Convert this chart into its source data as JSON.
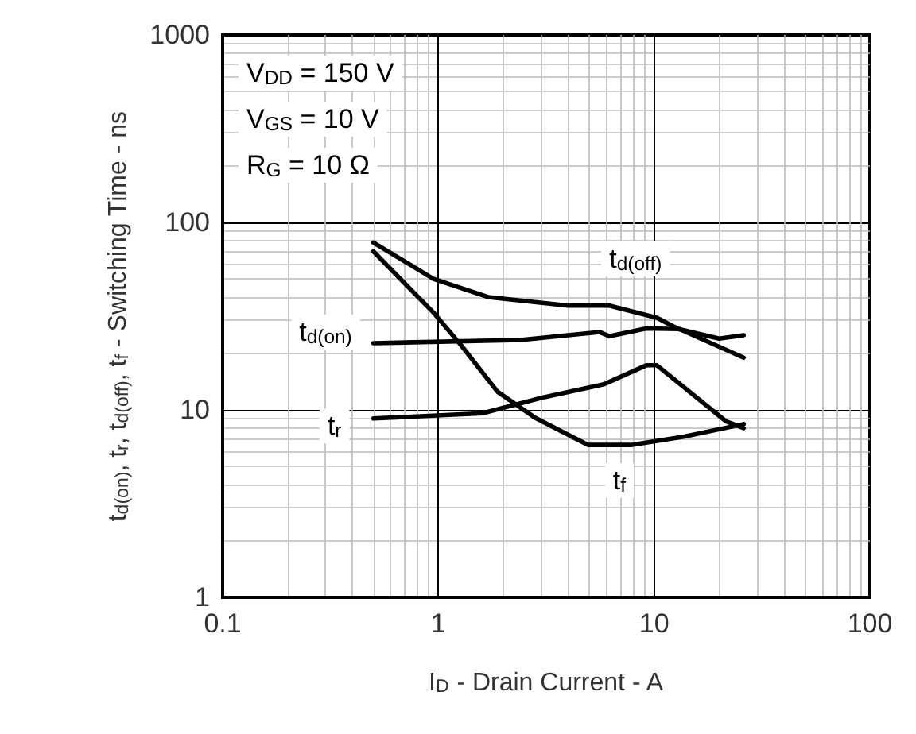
{
  "chart_data": {
    "type": "line",
    "xlabel": "I$_{D}$ - Drain Current - A",
    "ylabel": "t$_{d(on)}$, t$_{r}$, t$_{d(off)}$, t$_{f}$ - Switching Time - ns",
    "log": "xy",
    "grid": true,
    "marker": "none",
    "line_style": "solid",
    "xlim": [
      0.1,
      100
    ],
    "xticks": [
      0.1,
      1,
      10,
      100
    ],
    "ylim": [
      1,
      1000
    ],
    "yticks": [
      1,
      10,
      100,
      1000
    ],
    "series": [
      {
        "color": "#000000",
        "x": [
          0.5,
          0.95,
          1.7,
          4,
          6.2,
          10.3,
          12.2,
          26
        ],
        "values": [
          78,
          50,
          40,
          36,
          36,
          31,
          28,
          19
        ]
      },
      {
        "color": "#000000",
        "x": [
          0.5,
          0.95,
          1.28,
          1.88,
          2.8,
          4.95,
          7.8,
          13.7,
          26
        ],
        "values": [
          70,
          33,
          22,
          12.5,
          9.1,
          6.5,
          6.5,
          7.2,
          8.4
        ]
      },
      {
        "color": "#000000",
        "x": [
          0.5,
          2.4,
          5.6,
          6.2,
          9.2,
          13,
          20,
          26
        ],
        "values": [
          22.7,
          23.6,
          26,
          24.7,
          27.2,
          27,
          24,
          25
        ]
      },
      {
        "color": "#000000",
        "x": [
          0.5,
          1.6,
          3.1,
          5.85,
          9.2,
          10.3,
          21.5,
          26
        ],
        "values": [
          9,
          9.6,
          11.7,
          13.7,
          17.3,
          17.3,
          8.7,
          8
        ]
      }
    ],
    "annotations": [
      "V$_{DD}$ = 150 V",
      "V$_{GS}$ = 10 V",
      "R$_{G}$ = 10 Ω",
      {
        "text": "t$_{d(off)}$",
        "x": 8.2,
        "y": 64
      },
      {
        "text": "t$_{d(on)}$",
        "x": 0.3,
        "y": 26
      },
      {
        "text": "t$_{r}$",
        "x": 0.33,
        "y": 8.2
      },
      {
        "text": "t$_{f}$",
        "x": 6.9,
        "y": 4.2
      }
    ]
  }
}
